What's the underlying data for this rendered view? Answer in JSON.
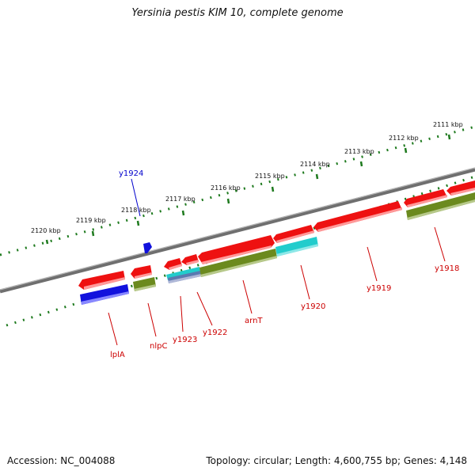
{
  "title": "Yersinia pestis KIM 10, complete genome",
  "footer": {
    "accession": "Accession: NC_004088",
    "topology": "Topology: circular; Length: 4,600,755 bp; Genes: 4,148"
  },
  "colors": {
    "backbone": "#7a7a7a",
    "ticks": "#1e7a1e",
    "forward_gene": "#ee1111",
    "reverse_gene": "#6b8a1e",
    "cyan_gene": "#22cccc",
    "blue_gene": "#1111dd",
    "label_red": "#cc0000",
    "label_blue": "#0000cc"
  },
  "scale": {
    "tick_labels": [
      "2120 kbp",
      "2119 kbp",
      "2118 kbp",
      "2117 kbp",
      "2116 kbp",
      "2115 kbp",
      "2114 kbp",
      "2113 kbp",
      "2112 kbp",
      "2111 kbp"
    ]
  },
  "genes": [
    {
      "name": "y1924",
      "color": "label_blue"
    },
    {
      "name": "lplA",
      "color": "label_red"
    },
    {
      "name": "nlpC",
      "color": "label_red"
    },
    {
      "name": "y1923",
      "color": "label_red"
    },
    {
      "name": "y1922",
      "color": "label_red"
    },
    {
      "name": "arnT",
      "color": "label_red"
    },
    {
      "name": "y1920",
      "color": "label_red"
    },
    {
      "name": "y1919",
      "color": "label_red"
    },
    {
      "name": "y1918",
      "color": "label_red"
    }
  ]
}
